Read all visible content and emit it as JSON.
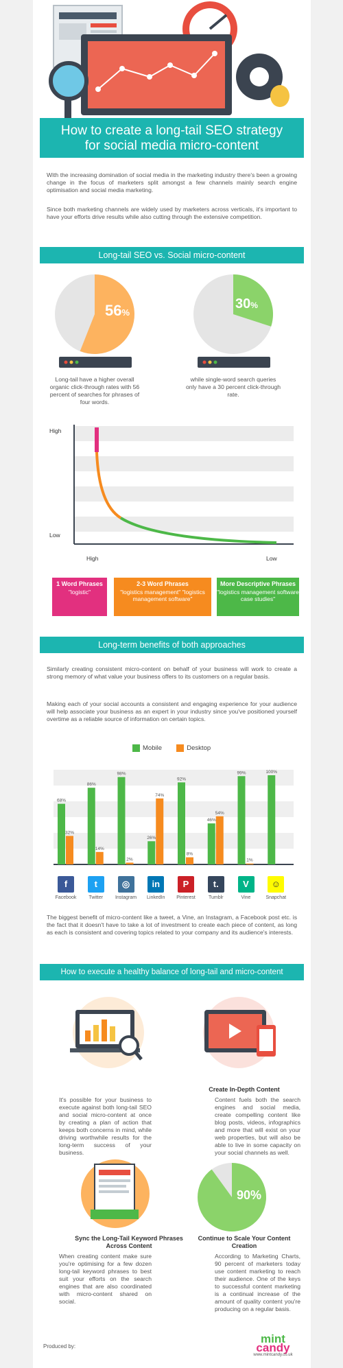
{
  "title": {
    "line1": "How to create a long-tail SEO strategy",
    "line2": "for social media micro-content"
  },
  "intro": {
    "p1": "With the increasing domination of social media in the marketing industry there's been a growing change in the focus of marketers split amongst a few channels mainly search engine optimisation and social media marketing.",
    "p2": "Since both marketing channels are widely used by marketers across verticals, it's important to have your efforts drive results while also cutting through the extensive competition."
  },
  "section1": {
    "title": "Long-tail SEO vs. Social micro-content",
    "pie_left": {
      "value": 56,
      "label": "56",
      "unit": "%",
      "caption": "Long-tail have a higher overall organic click-through rates with 56 percent of searches for phrases of four words."
    },
    "pie_right": {
      "value": 30,
      "label": "30",
      "unit": "%",
      "caption": "while single-word search queries only have a 30 percent click-through rate."
    }
  },
  "curve": {
    "y_high": "High",
    "y_low": "Low",
    "x_high": "High",
    "x_low": "Low",
    "colors": {
      "pink": "#e2307f",
      "orange": "#f68b1f",
      "green": "#4db848"
    }
  },
  "phrases": [
    {
      "title": "1 Word Phrases",
      "example": "\"logistic\"",
      "color": "#e2307f"
    },
    {
      "title": "2-3 Word Phrases",
      "example": "\"logistics management\" \"logistics management software\"",
      "color": "#f68b1f"
    },
    {
      "title": "More Descriptive Phrases",
      "example": "\"logistics management software case studies\"",
      "color": "#4db848"
    }
  ],
  "section2": {
    "title": "Long-term benefits of both approaches",
    "p1": "Similarly creating consistent micro-content on behalf of your business will work to create a strong memory of what value your business offers to its customers on a regular basis.",
    "p2": "Making each of your social accounts a consistent and engaging experience for your audience will help associate your business as an expert in your industry since you've positioned yourself overtime as a reliable source of information on certain topics.",
    "p3": "The biggest benefit of micro-content like a tweet, a Vine, an Instagram, a Facebook post etc. is the fact that it doesn't have to take a lot of investment to create each piece of content, as long as each is consistent and covering topics related to your company and its audience's interests."
  },
  "chart_data": {
    "type": "bar",
    "categories": [
      "Facebook",
      "Twitter",
      "Instagram",
      "LinkedIn",
      "Pinterest",
      "Tumblr",
      "Vine",
      "Snapchat"
    ],
    "series": [
      {
        "name": "Mobile",
        "color": "#4db848",
        "values": [
          68,
          86,
          98,
          26,
          92,
          46,
          99,
          100
        ]
      },
      {
        "name": "Desktop",
        "color": "#f68b1f",
        "values": [
          32,
          14,
          2,
          74,
          8,
          54,
          1,
          0
        ]
      }
    ],
    "ylim": [
      0,
      100
    ],
    "legend": "top-center",
    "labels_mobile": [
      "68%",
      "86%",
      "98%",
      "26%",
      "92%",
      "46%",
      "99%",
      "100%"
    ],
    "labels_desktop": [
      "32%",
      "14%",
      "2%",
      "74%",
      "8%",
      "54%",
      "1%",
      ""
    ]
  },
  "social_icons": [
    {
      "name": "facebook",
      "glyph": "f",
      "color": "#3b5998"
    },
    {
      "name": "twitter",
      "glyph": "t",
      "color": "#1da1f2"
    },
    {
      "name": "instagram",
      "glyph": "◎",
      "color": "#3f729b"
    },
    {
      "name": "linkedin",
      "glyph": "in",
      "color": "#0077b5"
    },
    {
      "name": "pinterest",
      "glyph": "P",
      "color": "#cb2027"
    },
    {
      "name": "tumblr",
      "glyph": "t.",
      "color": "#35465c"
    },
    {
      "name": "vine",
      "glyph": "V",
      "color": "#00b488"
    },
    {
      "name": "snapchat",
      "glyph": "☺",
      "color": "#fffc00"
    }
  ],
  "section3": {
    "title": "How to execute a healthy balance of long-tail and micro-content",
    "block1": {
      "text": "It's possible for your business to execute against both long-tail SEO and social micro-content at once by creating a plan of action that keeps both concerns in mind, while driving worthwhile results for the long-term success of your business."
    },
    "block2": {
      "heading": "Create In-Depth Content",
      "text": "Content fuels both the search engines and social media, create compelling content like blog posts, videos, infographics and more that will exist on your web properties, but will also be able to live in some capacity on your social channels as well."
    },
    "block3": {
      "heading": "Sync the Long-Tail Keyword Phrases Across Content",
      "text": "When creating content make sure you're optimising for a few dozen long-tail keyword phrases to best suit your efforts on the search engines that are also coordinated with micro-content shared on social."
    },
    "block4": {
      "heading": "Continue to Scale Your Content Creation",
      "pie_label": "90%",
      "pie_value": 90,
      "text": "According to Marketing Charts, 90 percent of marketers today use content marketing to reach their audience. One of the keys to successful content marketing is a continual increase of the amount of quality content you're producing on a regular basis."
    }
  },
  "footer": {
    "produced_by": "Produced by:",
    "logo_line1": "mint",
    "logo_line2": "candy",
    "url": "www.mintcandy.co.uk"
  }
}
